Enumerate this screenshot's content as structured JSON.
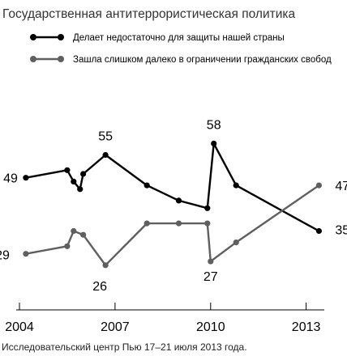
{
  "chart_data": {
    "type": "line",
    "title": "Государственная антитеррористическая политика",
    "source": "Исследовательский центр Пью 17–21 июля 2013 года.",
    "x_ticks": [
      2004,
      2007,
      2010,
      2013
    ],
    "xlim": [
      2004,
      2013.9
    ],
    "ylim": [
      0,
      100
    ],
    "grid": false,
    "legend_position": "top-left",
    "series": [
      {
        "name": "Делает недостаточно для защиты нашей страны",
        "color": "#000000",
        "points": [
          {
            "x": 2004.2,
            "y": 49,
            "label": "49"
          },
          {
            "x": 2005.5,
            "y": 51
          },
          {
            "x": 2005.7,
            "y": 48
          },
          {
            "x": 2005.9,
            "y": 46
          },
          {
            "x": 2006.0,
            "y": 50
          },
          {
            "x": 2006.7,
            "y": 55,
            "label": "55"
          },
          {
            "x": 2008.0,
            "y": 47
          },
          {
            "x": 2009.0,
            "y": 43
          },
          {
            "x": 2009.9,
            "y": 41
          },
          {
            "x": 2010.1,
            "y": 58,
            "label": "58"
          },
          {
            "x": 2010.8,
            "y": 47
          },
          {
            "x": 2013.4,
            "y": 35,
            "label": "35"
          }
        ]
      },
      {
        "name": "Зашла слишком далеко в ограничении гражданских свобод",
        "color": "#5f5f5f",
        "points": [
          {
            "x": 2004.2,
            "y": 29,
            "label": "29"
          },
          {
            "x": 2005.5,
            "y": 31
          },
          {
            "x": 2005.7,
            "y": 35
          },
          {
            "x": 2006.0,
            "y": 34
          },
          {
            "x": 2006.7,
            "y": 26,
            "label": "26"
          },
          {
            "x": 2008.0,
            "y": 37
          },
          {
            "x": 2009.0,
            "y": 37
          },
          {
            "x": 2009.9,
            "y": 37
          },
          {
            "x": 2010.0,
            "y": 27,
            "label": "27"
          },
          {
            "x": 2010.8,
            "y": 32
          },
          {
            "x": 2013.4,
            "y": 47,
            "label": "47"
          }
        ]
      }
    ]
  }
}
